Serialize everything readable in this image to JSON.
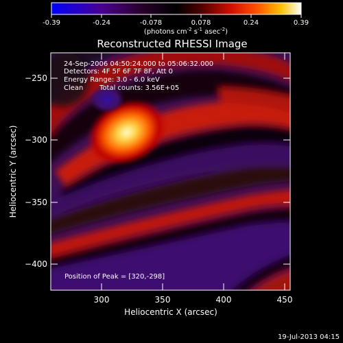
{
  "colorbar": {
    "ticks": [
      "-0.39",
      "-0.24",
      "-0.078",
      "0.078",
      "0.24",
      "0.39"
    ],
    "unit_prefix": "(photons cm",
    "exp1": "-2",
    "unit_mid": " s",
    "exp2": "-1",
    "unit_mid2": " asec",
    "exp3": "-2",
    "unit_suffix": ")",
    "stops": [
      "#0000ff",
      "#400080",
      "#200020",
      "#000000",
      "#3a0000",
      "#c00000",
      "#ff4000",
      "#ffa000",
      "#ffff60",
      "#ffffff"
    ]
  },
  "plot": {
    "title": "Reconstructed RHESSI Image",
    "xlabel": "Heliocentric X (arcsec)",
    "ylabel": "Heliocentric Y (arcsec)",
    "xticks": [
      "300",
      "350",
      "400",
      "450"
    ],
    "yticks": [
      "−250",
      "−300",
      "−350",
      "−400"
    ],
    "xrange": [
      262,
      452
    ],
    "yrange": [
      -422,
      -233
    ]
  },
  "info": {
    "line1": "24-Sep-2006 04:50:24.000 to 05:06:32.000",
    "line2": "Detectors: 4F 5F 6F 7F 8F, Att 0",
    "line3": "Energy Range: 3.0 - 6.0 keV",
    "line4a": "Clean",
    "line4b": "Total counts: 3.56E+05",
    "peak": "Position of Peak = [320,-298]"
  },
  "footer": {
    "date": "19-Jul-2013 04:15"
  }
}
